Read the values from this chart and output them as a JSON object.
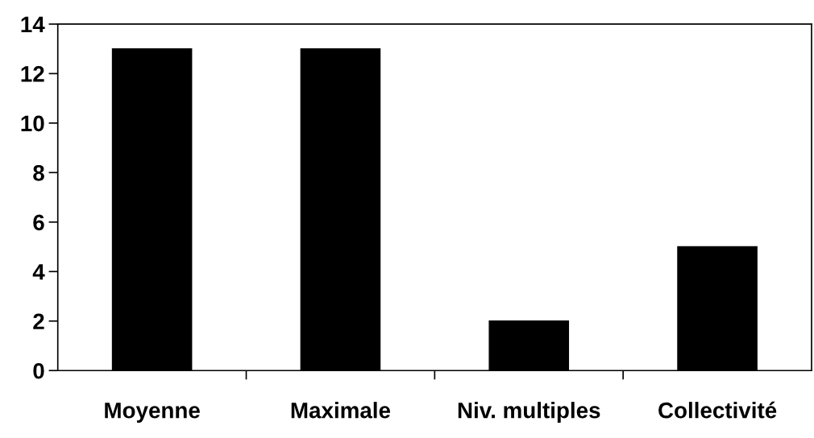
{
  "chart_data": {
    "type": "bar",
    "categories": [
      "Moyenne",
      "Maximale",
      "Niv. multiples",
      "Collectivité"
    ],
    "values": [
      13,
      13,
      2,
      5
    ],
    "color": "#000000",
    "ylim": [
      0,
      14
    ],
    "yticks": [
      0,
      2,
      4,
      6,
      8,
      10,
      12,
      14
    ],
    "grid": false,
    "legend": false
  }
}
